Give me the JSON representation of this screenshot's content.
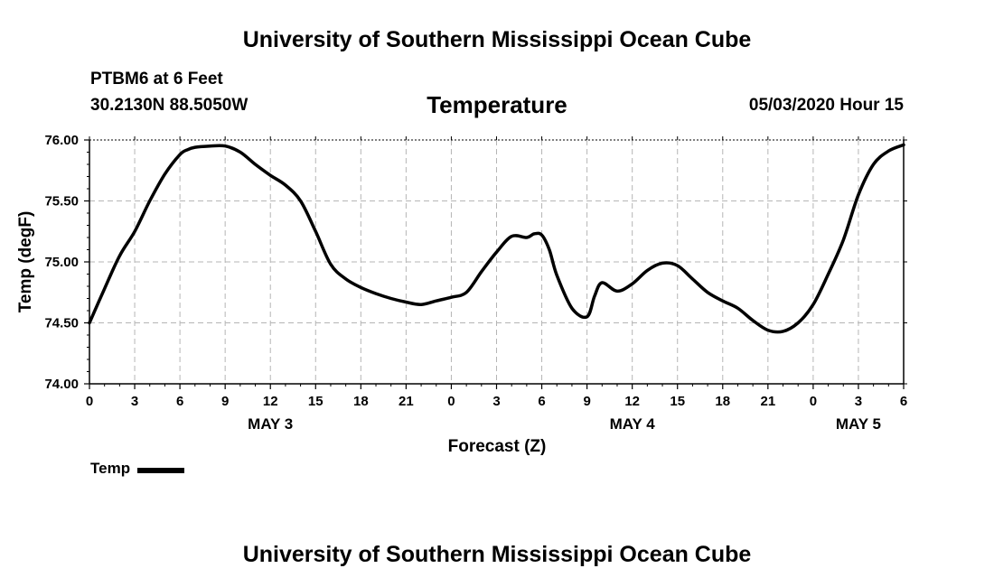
{
  "header": {
    "title": "University of Southern Mississippi Ocean Cube",
    "station": "PTBM6 at 6 Feet",
    "coordinates": "30.2130N 88.5050W",
    "variable": "Temperature",
    "datetime": "05/03/2020 Hour 15"
  },
  "footer": {
    "title": "University of Southern Mississippi Ocean Cube"
  },
  "legend": {
    "label": "Temp",
    "color": "#000000"
  },
  "chart_data": {
    "type": "line",
    "title": "Temperature",
    "xlabel": "Forecast (Z)",
    "ylabel": "Temp (degF)",
    "xlim": [
      0,
      54
    ],
    "ylim": [
      74.0,
      76.0
    ],
    "grid": true,
    "x_ticks": [
      0,
      3,
      6,
      9,
      12,
      15,
      18,
      21,
      24,
      27,
      30,
      33,
      36,
      39,
      42,
      45,
      48,
      51,
      54
    ],
    "x_tick_labels": [
      "0",
      "3",
      "6",
      "9",
      "12",
      "15",
      "18",
      "21",
      "0",
      "3",
      "6",
      "9",
      "12",
      "15",
      "18",
      "21",
      "0",
      "3",
      "6"
    ],
    "y_ticks": [
      74.0,
      74.5,
      75.0,
      75.5,
      76.0
    ],
    "y_tick_labels": [
      "74.00",
      "74.50",
      "75.00",
      "75.50",
      "76.00"
    ],
    "date_labels": [
      {
        "x": 12,
        "label": "MAY 3"
      },
      {
        "x": 36,
        "label": "MAY 4"
      },
      {
        "x": 51,
        "label": "MAY 5"
      }
    ],
    "series": [
      {
        "name": "Temp",
        "color": "#000000",
        "x": [
          0,
          1,
          2,
          3,
          4,
          5,
          6,
          6.5,
          7,
          8,
          9,
          10,
          11,
          12,
          13,
          14,
          15,
          16,
          17,
          18,
          19,
          20,
          21,
          22,
          23,
          24,
          25,
          26,
          27,
          28,
          29,
          29.5,
          30,
          30.5,
          31,
          32,
          33,
          33.5,
          34,
          35,
          36,
          37,
          38,
          39,
          40,
          41,
          42,
          43,
          44,
          45,
          46,
          47,
          48,
          49,
          50,
          51,
          52,
          53,
          54
        ],
        "values": [
          74.5,
          74.78,
          75.05,
          75.25,
          75.5,
          75.72,
          75.88,
          75.92,
          75.94,
          75.95,
          75.95,
          75.9,
          75.8,
          75.71,
          75.63,
          75.5,
          75.25,
          74.98,
          74.86,
          74.79,
          74.74,
          74.7,
          74.67,
          74.65,
          74.68,
          74.71,
          74.75,
          74.92,
          75.08,
          75.21,
          75.2,
          75.23,
          75.22,
          75.1,
          74.89,
          74.62,
          74.55,
          74.72,
          74.83,
          74.76,
          74.82,
          74.93,
          74.99,
          74.97,
          74.86,
          74.75,
          74.68,
          74.62,
          74.52,
          74.44,
          74.43,
          74.5,
          74.65,
          74.9,
          75.18,
          75.55,
          75.8,
          75.91,
          75.96
        ]
      }
    ]
  }
}
